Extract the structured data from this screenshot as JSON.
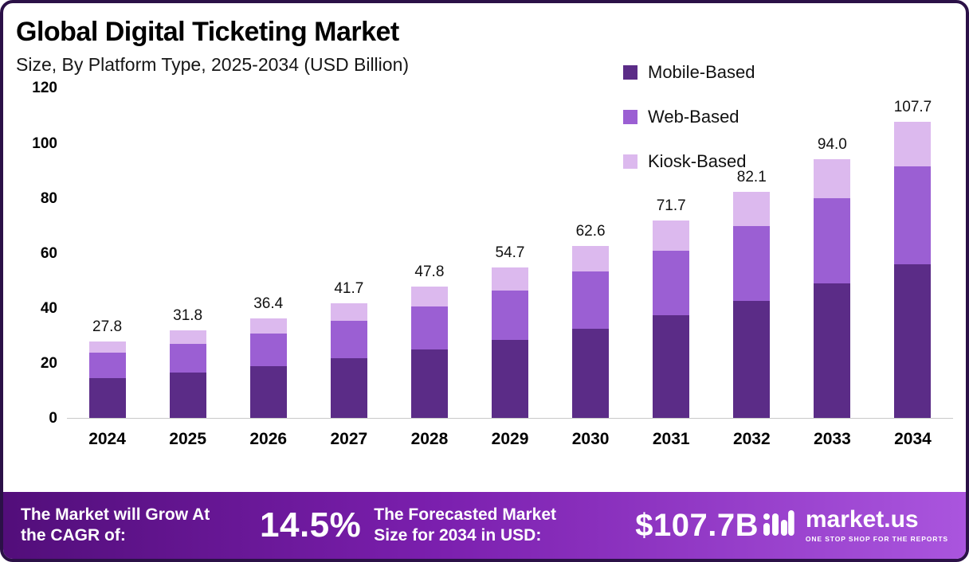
{
  "header": {
    "title": "Global Digital Ticketing Market",
    "subtitle": "Size, By Platform Type, 2025-2034 (USD Billion)"
  },
  "legend": [
    {
      "label": "Mobile-Based",
      "color": "#5b2c87"
    },
    {
      "label": "Web-Based",
      "color": "#9b5fd3"
    },
    {
      "label": "Kiosk-Based",
      "color": "#dcb9ee"
    }
  ],
  "chart_data": {
    "type": "bar",
    "stacked": true,
    "title": "Global Digital Ticketing Market",
    "subtitle": "Size, By Platform Type, 2025-2034 (USD Billion)",
    "categories": [
      "2024",
      "2025",
      "2026",
      "2027",
      "2028",
      "2029",
      "2030",
      "2031",
      "2032",
      "2033",
      "2034"
    ],
    "totals": [
      27.8,
      31.8,
      36.4,
      41.7,
      47.8,
      54.7,
      62.6,
      71.7,
      82.1,
      94.0,
      107.7
    ],
    "series": [
      {
        "name": "Mobile-Based",
        "color": "#5b2c87",
        "values": [
          14.5,
          16.5,
          18.9,
          21.7,
          24.9,
          28.4,
          32.6,
          37.3,
          42.7,
          48.9,
          56.0
        ]
      },
      {
        "name": "Web-Based",
        "color": "#9b5fd3",
        "values": [
          9.2,
          10.5,
          12.0,
          13.8,
          15.8,
          18.1,
          20.7,
          23.6,
          27.1,
          31.0,
          35.5
        ]
      },
      {
        "name": "Kiosk-Based",
        "color": "#dcb9ee",
        "values": [
          4.1,
          4.8,
          5.5,
          6.2,
          7.1,
          8.2,
          9.3,
          10.8,
          12.3,
          14.1,
          16.2
        ]
      }
    ],
    "ylabel": "",
    "xlabel": "",
    "ylim": [
      0,
      120
    ],
    "yticks": [
      0,
      20,
      40,
      60,
      80,
      100,
      120
    ],
    "grid": false,
    "legend_position": "top-right",
    "value_label_format": "one-decimal"
  },
  "footer": {
    "cagr_label": "The Market will Grow At the CAGR of:",
    "cagr_value": "14.5%",
    "forecast_label": "The Forecasted Market Size for 2034 in USD:",
    "forecast_value": "$107.7B",
    "brand": {
      "name": "market.us",
      "tagline": "One Stop Shop for the Reports"
    }
  }
}
